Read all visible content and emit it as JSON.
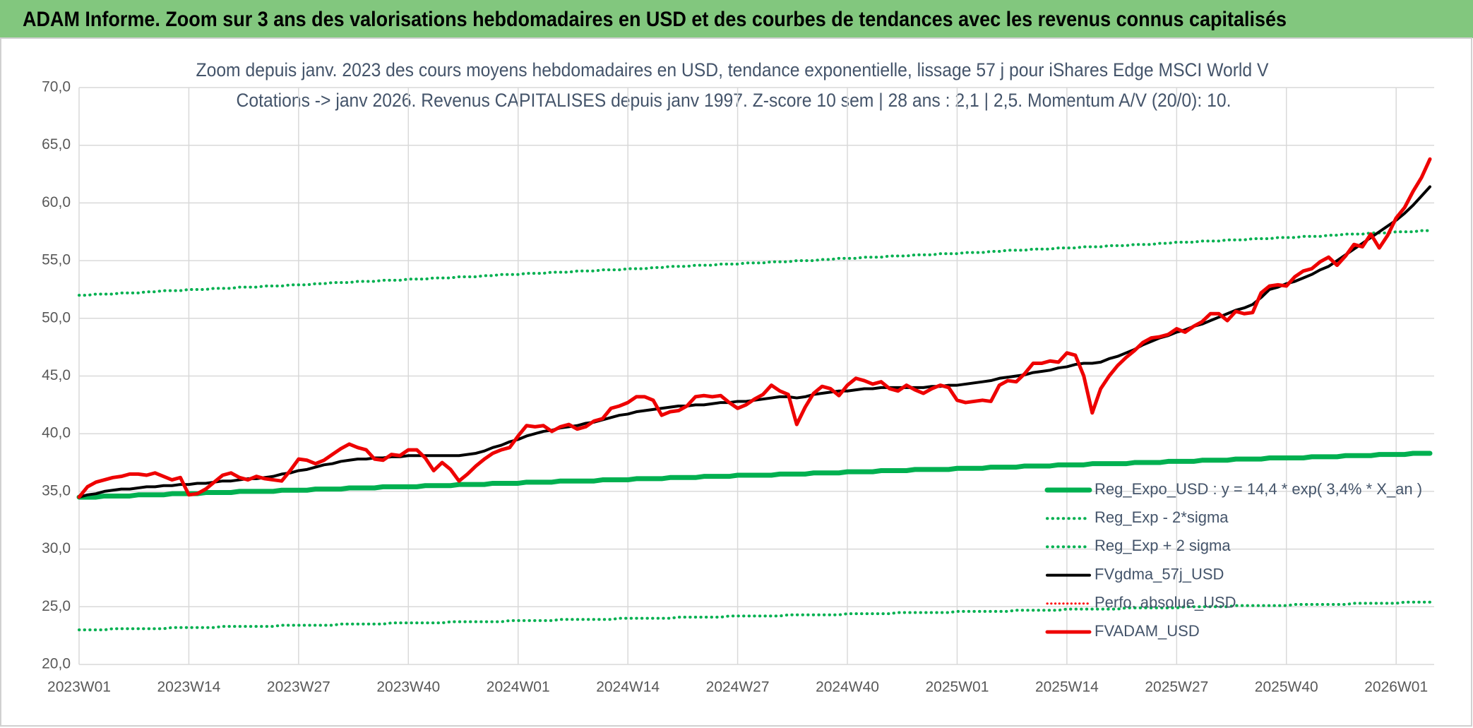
{
  "chart_data": {
    "type": "line",
    "title": "ADAM Informe. Zoom sur 3 ans des valorisations hebdomadaires en USD et des courbes de tendances avec les revenus connus capitalisés",
    "subtitle": [
      "Zoom depuis janv. 2023 des cours moyens hebdomadaires en USD, tendance exponentielle, lissage 57 j pour iShares Edge MSCI World V",
      "Cotations -> janv 2026. Revenus CAPITALISES depuis janv 1997. Z-score 10 sem | 28 ans : 2,1 | 2,5. Momentum A/V (20/0): 10."
    ],
    "categories": [
      "2023W01",
      null,
      null,
      null,
      null,
      null,
      null,
      null,
      null,
      null,
      null,
      null,
      null,
      "2023W14",
      null,
      null,
      null,
      null,
      null,
      null,
      null,
      null,
      null,
      null,
      null,
      null,
      "2023W27",
      null,
      null,
      null,
      null,
      null,
      null,
      null,
      null,
      null,
      null,
      null,
      null,
      "2023W40",
      null,
      null,
      null,
      null,
      null,
      null,
      null,
      null,
      null,
      null,
      null,
      null,
      "2024W01",
      null,
      null,
      null,
      null,
      null,
      null,
      null,
      null,
      null,
      null,
      null,
      null,
      "2024W14",
      null,
      null,
      null,
      null,
      null,
      null,
      null,
      null,
      null,
      null,
      null,
      null,
      "2024W27",
      null,
      null,
      null,
      null,
      null,
      null,
      null,
      null,
      null,
      null,
      null,
      null,
      "2024W40",
      null,
      null,
      null,
      null,
      null,
      null,
      null,
      null,
      null,
      null,
      null,
      null,
      "2025W01",
      null,
      null,
      null,
      null,
      null,
      null,
      null,
      null,
      null,
      null,
      null,
      null,
      "2025W14",
      null,
      null,
      null,
      null,
      null,
      null,
      null,
      null,
      null,
      null,
      null,
      null,
      "2025W27",
      null,
      null,
      null,
      null,
      null,
      null,
      null,
      null,
      null,
      null,
      null,
      null,
      "2025W40",
      null,
      null,
      null,
      null,
      null,
      null,
      null,
      null,
      null,
      null,
      null,
      null,
      "2026W01",
      null,
      null,
      null,
      null
    ],
    "ylim": [
      20,
      70
    ],
    "yticks": [
      {
        "value": 20,
        "label": "20,0"
      },
      {
        "value": 25,
        "label": "25,0"
      },
      {
        "value": 30,
        "label": "30,0"
      },
      {
        "value": 35,
        "label": "35,0"
      },
      {
        "value": 40,
        "label": "40,0"
      },
      {
        "value": 45,
        "label": "45,0"
      },
      {
        "value": 50,
        "label": "50,0"
      },
      {
        "value": 55,
        "label": "55,0"
      },
      {
        "value": 60,
        "label": "60,0"
      },
      {
        "value": 65,
        "label": "65,0"
      },
      {
        "value": 70,
        "label": "70,0"
      }
    ],
    "grid": true,
    "legend": "lower right",
    "series": [
      {
        "name": "Reg_Expo_USD : y = 14,4 * exp( 3,4% *  X_an )",
        "color": "#00b050",
        "dash": "solid",
        "width": 7,
        "values": [
          34.5,
          34.5,
          34.5,
          34.6,
          34.6,
          34.6,
          34.6,
          34.7,
          34.7,
          34.7,
          34.7,
          34.8,
          34.8,
          34.8,
          34.8,
          34.9,
          34.9,
          34.9,
          34.9,
          35.0,
          35.0,
          35.0,
          35.0,
          35.0,
          35.1,
          35.1,
          35.1,
          35.1,
          35.2,
          35.2,
          35.2,
          35.2,
          35.3,
          35.3,
          35.3,
          35.3,
          35.4,
          35.4,
          35.4,
          35.4,
          35.4,
          35.5,
          35.5,
          35.5,
          35.5,
          35.6,
          35.6,
          35.6,
          35.6,
          35.7,
          35.7,
          35.7,
          35.7,
          35.8,
          35.8,
          35.8,
          35.8,
          35.9,
          35.9,
          35.9,
          35.9,
          35.9,
          36.0,
          36.0,
          36.0,
          36.0,
          36.1,
          36.1,
          36.1,
          36.1,
          36.2,
          36.2,
          36.2,
          36.2,
          36.3,
          36.3,
          36.3,
          36.3,
          36.4,
          36.4,
          36.4,
          36.4,
          36.4,
          36.5,
          36.5,
          36.5,
          36.5,
          36.6,
          36.6,
          36.6,
          36.6,
          36.7,
          36.7,
          36.7,
          36.7,
          36.8,
          36.8,
          36.8,
          36.8,
          36.9,
          36.9,
          36.9,
          36.9,
          36.9,
          37.0,
          37.0,
          37.0,
          37.0,
          37.1,
          37.1,
          37.1,
          37.1,
          37.2,
          37.2,
          37.2,
          37.2,
          37.3,
          37.3,
          37.3,
          37.3,
          37.4,
          37.4,
          37.4,
          37.4,
          37.4,
          37.5,
          37.5,
          37.5,
          37.5,
          37.6,
          37.6,
          37.6,
          37.6,
          37.7,
          37.7,
          37.7,
          37.7,
          37.8,
          37.8,
          37.8,
          37.8,
          37.9,
          37.9,
          37.9,
          37.9,
          37.9,
          38.0,
          38.0,
          38.0,
          38.0,
          38.1,
          38.1,
          38.1,
          38.1,
          38.2,
          38.2,
          38.2,
          38.2,
          38.3,
          38.3,
          38.3
        ]
      },
      {
        "name": "Reg_Exp - 2*sigma",
        "color": "#00b050",
        "dash": "dotted",
        "width": 4,
        "values": [
          23.0,
          23.0,
          23.0,
          23.0,
          23.1,
          23.1,
          23.1,
          23.1,
          23.1,
          23.1,
          23.1,
          23.2,
          23.2,
          23.2,
          23.2,
          23.2,
          23.2,
          23.3,
          23.3,
          23.3,
          23.3,
          23.3,
          23.3,
          23.3,
          23.4,
          23.4,
          23.4,
          23.4,
          23.4,
          23.4,
          23.4,
          23.5,
          23.5,
          23.5,
          23.5,
          23.5,
          23.5,
          23.6,
          23.6,
          23.6,
          23.6,
          23.6,
          23.6,
          23.6,
          23.7,
          23.7,
          23.7,
          23.7,
          23.7,
          23.7,
          23.7,
          23.8,
          23.8,
          23.8,
          23.8,
          23.8,
          23.8,
          23.9,
          23.9,
          23.9,
          23.9,
          23.9,
          23.9,
          23.9,
          24.0,
          24.0,
          24.0,
          24.0,
          24.0,
          24.0,
          24.0,
          24.1,
          24.1,
          24.1,
          24.1,
          24.1,
          24.1,
          24.2,
          24.2,
          24.2,
          24.2,
          24.2,
          24.2,
          24.2,
          24.3,
          24.3,
          24.3,
          24.3,
          24.3,
          24.3,
          24.3,
          24.4,
          24.4,
          24.4,
          24.4,
          24.4,
          24.4,
          24.5,
          24.5,
          24.5,
          24.5,
          24.5,
          24.5,
          24.5,
          24.6,
          24.6,
          24.6,
          24.6,
          24.6,
          24.6,
          24.6,
          24.7,
          24.7,
          24.7,
          24.7,
          24.7,
          24.7,
          24.8,
          24.8,
          24.8,
          24.8,
          24.8,
          24.8,
          24.8,
          24.9,
          24.9,
          24.9,
          24.9,
          24.9,
          24.9,
          24.9,
          25.0,
          25.0,
          25.0,
          25.0,
          25.0,
          25.0,
          25.1,
          25.1,
          25.1,
          25.1,
          25.1,
          25.1,
          25.1,
          25.2,
          25.2,
          25.2,
          25.2,
          25.2,
          25.2,
          25.2,
          25.3,
          25.3,
          25.3,
          25.3,
          25.3,
          25.3,
          25.4,
          25.4,
          25.4,
          25.4
        ]
      },
      {
        "name": "Reg_Exp + 2 sigma",
        "color": "#00b050",
        "dash": "dotted",
        "width": 4,
        "values": [
          52.0,
          52.0,
          52.1,
          52.1,
          52.1,
          52.2,
          52.2,
          52.2,
          52.3,
          52.3,
          52.4,
          52.4,
          52.4,
          52.5,
          52.5,
          52.5,
          52.6,
          52.6,
          52.6,
          52.7,
          52.7,
          52.7,
          52.8,
          52.8,
          52.8,
          52.9,
          52.9,
          52.9,
          53.0,
          53.0,
          53.1,
          53.1,
          53.1,
          53.2,
          53.2,
          53.2,
          53.3,
          53.3,
          53.3,
          53.4,
          53.4,
          53.4,
          53.5,
          53.5,
          53.5,
          53.6,
          53.6,
          53.6,
          53.7,
          53.7,
          53.8,
          53.8,
          53.8,
          53.9,
          53.9,
          53.9,
          54.0,
          54.0,
          54.0,
          54.1,
          54.1,
          54.1,
          54.2,
          54.2,
          54.2,
          54.3,
          54.3,
          54.3,
          54.4,
          54.4,
          54.5,
          54.5,
          54.5,
          54.6,
          54.6,
          54.6,
          54.7,
          54.7,
          54.7,
          54.8,
          54.8,
          54.8,
          54.9,
          54.9,
          54.9,
          55.0,
          55.0,
          55.0,
          55.1,
          55.1,
          55.2,
          55.2,
          55.2,
          55.3,
          55.3,
          55.3,
          55.4,
          55.4,
          55.4,
          55.5,
          55.5,
          55.5,
          55.6,
          55.6,
          55.6,
          55.7,
          55.7,
          55.7,
          55.8,
          55.8,
          55.9,
          55.9,
          55.9,
          56.0,
          56.0,
          56.0,
          56.1,
          56.1,
          56.1,
          56.2,
          56.2,
          56.2,
          56.3,
          56.3,
          56.3,
          56.4,
          56.4,
          56.4,
          56.5,
          56.5,
          56.6,
          56.6,
          56.6,
          56.7,
          56.7,
          56.7,
          56.8,
          56.8,
          56.8,
          56.9,
          56.9,
          56.9,
          57.0,
          57.0,
          57.0,
          57.1,
          57.1,
          57.1,
          57.2,
          57.2,
          57.3,
          57.3,
          57.3,
          57.4,
          57.4,
          57.4,
          57.5,
          57.5,
          57.5,
          57.6,
          57.6
        ]
      },
      {
        "name": "FVgdma_57j_USD",
        "color": "#000000",
        "dash": "solid",
        "width": 4,
        "values": [
          34.5,
          34.7,
          34.8,
          35.0,
          35.1,
          35.2,
          35.2,
          35.3,
          35.4,
          35.4,
          35.5,
          35.5,
          35.6,
          35.6,
          35.7,
          35.7,
          35.8,
          35.9,
          35.9,
          36.0,
          36.1,
          36.1,
          36.2,
          36.3,
          36.5,
          36.6,
          36.8,
          36.9,
          37.1,
          37.3,
          37.4,
          37.6,
          37.7,
          37.8,
          37.8,
          37.9,
          37.9,
          38.0,
          38.0,
          38.1,
          38.1,
          38.1,
          38.1,
          38.1,
          38.1,
          38.1,
          38.2,
          38.3,
          38.5,
          38.8,
          39.0,
          39.3,
          39.5,
          39.8,
          40.0,
          40.2,
          40.3,
          40.5,
          40.6,
          40.7,
          40.9,
          41.0,
          41.2,
          41.4,
          41.6,
          41.7,
          41.9,
          42.0,
          42.1,
          42.2,
          42.3,
          42.4,
          42.4,
          42.5,
          42.5,
          42.6,
          42.7,
          42.7,
          42.8,
          42.8,
          42.9,
          43.0,
          43.1,
          43.2,
          43.2,
          43.1,
          43.2,
          43.4,
          43.5,
          43.6,
          43.7,
          43.7,
          43.8,
          43.9,
          43.9,
          44.0,
          44.0,
          44.0,
          44.0,
          44.0,
          44.0,
          44.1,
          44.1,
          44.2,
          44.2,
          44.3,
          44.4,
          44.5,
          44.6,
          44.8,
          44.9,
          45.0,
          45.1,
          45.3,
          45.4,
          45.5,
          45.7,
          45.8,
          46.0,
          46.1,
          46.1,
          46.2,
          46.5,
          46.7,
          47.0,
          47.3,
          47.7,
          48.0,
          48.3,
          48.5,
          48.8,
          49.0,
          49.3,
          49.5,
          49.8,
          50.1,
          50.4,
          50.7,
          50.9,
          51.2,
          51.8,
          52.5,
          52.7,
          53.0,
          53.2,
          53.5,
          53.8,
          54.2,
          54.5,
          55.0,
          55.5,
          56.0,
          56.5,
          57.0,
          57.5,
          58.0,
          58.5,
          59.1,
          59.8,
          60.6,
          61.4
        ]
      },
      {
        "name": "Perfo. absolue_USD",
        "color": "#ff0000",
        "dash": "dotted",
        "width": 3
      },
      {
        "name": "FVADAM_USD",
        "color": "#ee0000",
        "dash": "solid",
        "width": 5,
        "values": [
          34.5,
          35.4,
          35.8,
          36.0,
          36.2,
          36.3,
          36.5,
          36.5,
          36.4,
          36.6,
          36.3,
          36.0,
          36.2,
          34.7,
          34.8,
          35.2,
          35.8,
          36.4,
          36.6,
          36.2,
          36.0,
          36.3,
          36.1,
          36.0,
          35.9,
          36.8,
          37.8,
          37.7,
          37.4,
          37.7,
          38.2,
          38.7,
          39.1,
          38.8,
          38.6,
          37.8,
          37.7,
          38.2,
          38.1,
          38.6,
          38.6,
          37.9,
          36.8,
          37.5,
          36.9,
          35.9,
          36.5,
          37.2,
          37.8,
          38.3,
          38.6,
          38.8,
          39.8,
          40.7,
          40.6,
          40.7,
          40.2,
          40.6,
          40.8,
          40.4,
          40.6,
          41.1,
          41.3,
          42.2,
          42.4,
          42.7,
          43.2,
          43.2,
          42.9,
          41.6,
          41.9,
          42.0,
          42.4,
          43.2,
          43.3,
          43.2,
          43.3,
          42.7,
          42.2,
          42.5,
          43.0,
          43.4,
          44.2,
          43.7,
          43.4,
          40.8,
          42.3,
          43.5,
          44.1,
          43.9,
          43.3,
          44.2,
          44.8,
          44.6,
          44.3,
          44.5,
          43.9,
          43.7,
          44.2,
          43.8,
          43.5,
          43.9,
          44.2,
          44.0,
          42.9,
          42.7,
          42.8,
          42.9,
          42.8,
          44.2,
          44.6,
          44.5,
          45.2,
          46.1,
          46.1,
          46.3,
          46.2,
          47.0,
          46.8,
          45.0,
          41.8,
          43.9,
          45.0,
          45.9,
          46.6,
          47.2,
          47.9,
          48.3,
          48.4,
          48.6,
          49.1,
          48.8,
          49.3,
          49.7,
          50.4,
          50.4,
          49.8,
          50.6,
          50.4,
          50.5,
          52.2,
          52.8,
          52.9,
          52.8,
          53.6,
          54.1,
          54.3,
          54.9,
          55.3,
          54.6,
          55.4,
          56.4,
          56.2,
          57.3,
          56.1,
          57.2,
          58.7,
          59.6,
          61.0,
          62.2,
          63.8
        ]
      }
    ]
  }
}
